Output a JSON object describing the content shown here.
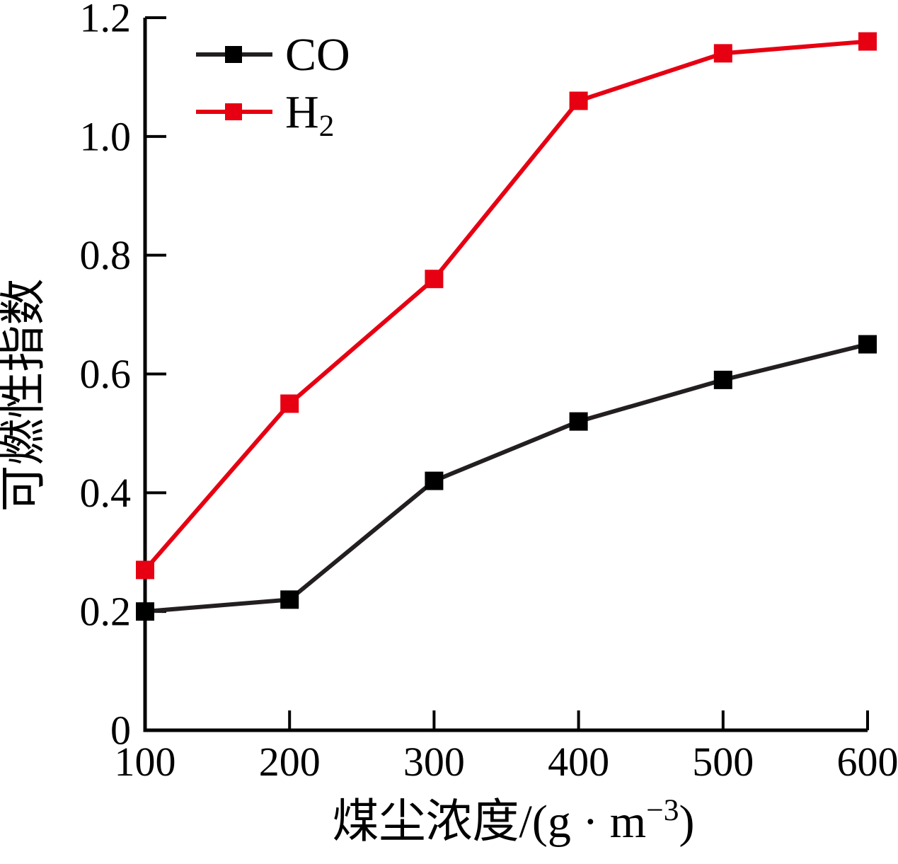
{
  "chart_data": {
    "type": "line",
    "title": "",
    "x": [
      100,
      200,
      300,
      400,
      500,
      600
    ],
    "series": [
      {
        "name": "CO",
        "label_base": "CO",
        "label_sub": "",
        "color": "#231f20",
        "marker_color": "#000000",
        "marker": "square",
        "values": [
          0.2,
          0.22,
          0.42,
          0.52,
          0.59,
          0.65
        ]
      },
      {
        "name": "H2",
        "label_base": "H",
        "label_sub": "2",
        "color": "#e60012",
        "marker_color": "#e60012",
        "marker": "square",
        "values": [
          0.27,
          0.55,
          0.76,
          1.06,
          1.14,
          1.16
        ]
      }
    ],
    "xlabel": "煤尘浓度/(g·m⁻³)",
    "xlabel_parts": {
      "base": "煤尘浓度/(g · m",
      "sup": "−3",
      "close": ")"
    },
    "ylabel": "可燃性指数",
    "xlim": [
      100,
      600
    ],
    "ylim": [
      0,
      1.2
    ],
    "xticks": [
      100,
      200,
      300,
      400,
      500,
      600
    ],
    "xtick_labels": [
      "100",
      "200",
      "300",
      "400",
      "500",
      "600"
    ],
    "yticks": [
      0,
      0.2,
      0.4,
      0.6,
      0.8,
      1.0,
      1.2
    ],
    "ytick_labels": [
      "0",
      "0.2",
      "0.4",
      "0.6",
      "0.8",
      "1.0",
      "1.2"
    ],
    "grid": false,
    "legend_position": "upper-left-inside",
    "axis_color": "#000000"
  }
}
